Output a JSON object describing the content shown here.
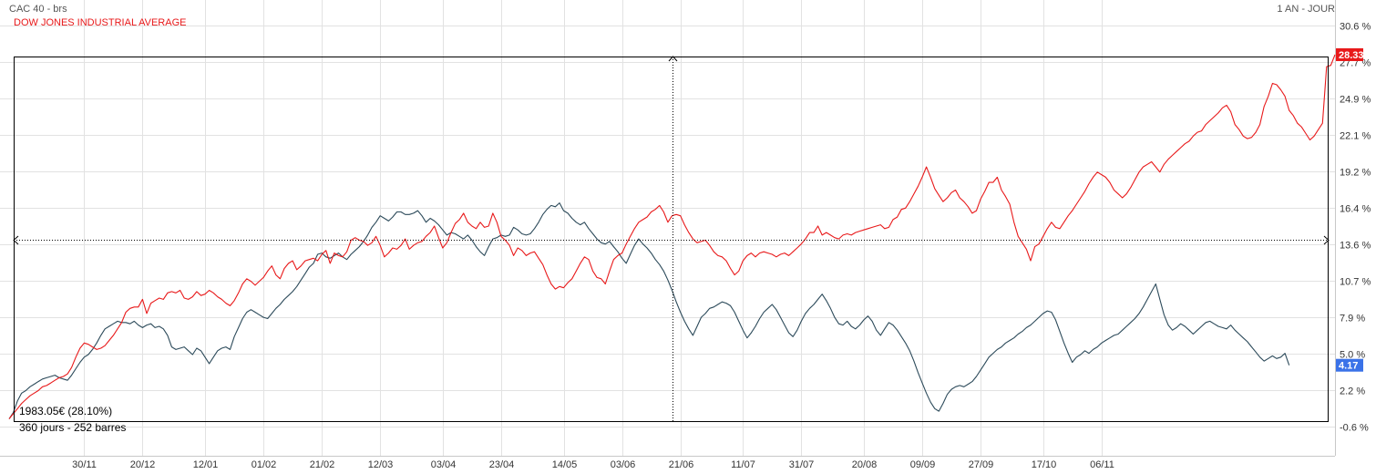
{
  "header": {
    "instrument": "CAC 40 - brs",
    "compare": "DOW JONES INDUSTRIAL AVERAGE",
    "period": "1 AN - JOUR"
  },
  "selection": {
    "price_change": "1983.05€ (28.10%)",
    "duration": "360 jours - 252 barres"
  },
  "colors": {
    "cac40": "#2c4a5a",
    "djia": "#e8191a",
    "last_cac_badge": "#3a72e8",
    "last_djia_badge": "#e8191a",
    "grid": "#e2e2e2"
  },
  "chart_data": {
    "type": "line",
    "y_unit": "%",
    "ylim": [
      -0.6,
      30.6
    ],
    "y_ticks": [
      "30.6 %",
      "27.7 %",
      "24.9 %",
      "22.1 %",
      "19.2 %",
      "16.4 %",
      "13.6 %",
      "10.7 %",
      "7.9 %",
      "5.0 %",
      "2.2 %",
      "-0.6 %"
    ],
    "x_ticks": [
      "30/11",
      "20/12",
      "12/01",
      "01/02",
      "21/02",
      "12/03",
      "03/04",
      "23/04",
      "14/05",
      "03/06",
      "21/06",
      "11/07",
      "31/07",
      "20/08",
      "09/09",
      "27/09",
      "17/10",
      "06/11"
    ],
    "x_tick_index": [
      18,
      32,
      47,
      61,
      75,
      89,
      104,
      118,
      133,
      147,
      161,
      176,
      190,
      205,
      219,
      233,
      248,
      262
    ],
    "grid": true,
    "last_values": {
      "djia": "28.33",
      "cac40": "4.17"
    },
    "series": [
      {
        "name": "DOW JONES INDUSTRIAL AVERAGE",
        "key": "djia",
        "values": [
          0.0,
          0.4,
          0.8,
          1.2,
          1.5,
          1.8,
          2.0,
          2.2,
          2.5,
          2.6,
          2.8,
          3.0,
          3.2,
          3.3,
          3.5,
          4.0,
          4.8,
          5.5,
          5.9,
          5.8,
          5.6,
          5.4,
          5.5,
          5.7,
          6.1,
          6.5,
          7.0,
          7.5,
          8.3,
          8.6,
          8.7,
          8.7,
          9.3,
          8.2,
          9.0,
          9.2,
          9.4,
          9.3,
          9.8,
          9.9,
          9.8,
          10.0,
          9.4,
          9.3,
          9.5,
          9.9,
          9.6,
          9.7,
          10.0,
          9.8,
          9.5,
          9.3,
          9.0,
          8.8,
          9.2,
          9.8,
          10.5,
          10.9,
          10.7,
          10.4,
          10.7,
          11.0,
          11.5,
          11.9,
          11.2,
          10.9,
          11.7,
          12.1,
          12.3,
          11.6,
          11.9,
          12.3,
          12.4,
          12.5,
          12.3,
          12.8,
          13.1,
          12.1,
          12.9,
          12.7,
          12.6,
          13.0,
          13.9,
          14.1,
          13.9,
          13.8,
          13.5,
          13.7,
          14.2,
          13.5,
          12.6,
          12.9,
          13.3,
          13.2,
          13.5,
          14.0,
          13.2,
          13.5,
          13.7,
          13.8,
          14.2,
          14.5,
          15.0,
          14.1,
          13.3,
          13.7,
          14.5,
          15.2,
          15.5,
          16.0,
          15.3,
          15.0,
          14.8,
          15.3,
          14.9,
          15.0,
          16.0,
          15.3,
          14.2,
          13.9,
          13.5,
          12.7,
          13.3,
          13.1,
          12.7,
          12.9,
          13.0,
          12.5,
          12.0,
          11.2,
          10.5,
          10.1,
          10.3,
          10.2,
          10.6,
          10.9,
          11.5,
          12.1,
          12.6,
          12.4,
          11.5,
          11.0,
          10.9,
          10.5,
          11.5,
          12.4,
          12.7,
          12.9,
          13.6,
          14.2,
          14.8,
          15.3,
          15.5,
          15.7,
          16.1,
          16.3,
          16.6,
          16.1,
          15.3,
          15.8,
          15.9,
          15.8,
          15.1,
          14.5,
          14.0,
          13.7,
          13.8,
          13.9,
          13.5,
          13.0,
          12.7,
          12.6,
          12.3,
          11.7,
          11.2,
          11.5,
          12.3,
          12.7,
          12.9,
          12.6,
          12.9,
          13.0,
          12.9,
          12.8,
          12.6,
          12.8,
          12.9,
          12.7,
          13.0,
          13.3,
          13.6,
          14.0,
          14.5,
          14.5,
          15.0,
          14.3,
          14.5,
          14.3,
          14.1,
          14.0,
          14.3,
          14.4,
          14.3,
          14.5,
          14.6,
          14.7,
          14.8,
          14.9,
          15.0,
          15.1,
          14.8,
          14.9,
          15.5,
          15.7,
          16.3,
          16.4,
          16.9,
          17.5,
          18.1,
          18.8,
          19.6,
          18.8,
          17.9,
          17.4,
          16.9,
          17.2,
          17.6,
          17.8,
          17.2,
          16.9,
          16.5,
          16.0,
          16.2,
          17.1,
          17.7,
          18.4,
          18.4,
          18.8,
          17.8,
          17.3,
          16.7,
          15.3,
          14.2,
          13.7,
          13.2,
          12.3,
          13.4,
          13.6,
          14.2,
          14.8,
          15.3,
          14.9,
          14.8,
          15.3,
          15.8,
          16.2,
          16.7,
          17.2,
          17.7,
          18.3,
          18.8,
          19.2,
          19.0,
          18.8,
          18.4,
          17.8,
          17.5,
          17.2,
          17.5,
          18.0,
          18.6,
          19.2,
          19.6,
          19.8,
          20.0,
          19.6,
          19.2,
          19.8,
          20.2,
          20.5,
          20.8,
          21.1,
          21.4,
          21.6,
          22.0,
          22.3,
          22.4,
          22.9,
          23.2,
          23.5,
          23.8,
          24.2,
          24.4,
          23.9,
          22.9,
          22.5,
          22.0,
          21.8,
          21.9,
          22.3,
          22.9,
          24.3,
          25.1,
          26.1,
          26.0,
          25.6,
          25.1,
          24.0,
          23.6,
          23.0,
          22.7,
          22.2,
          21.7,
          22.0,
          22.5,
          23.0,
          27.4,
          27.5,
          28.33
        ]
      },
      {
        "name": "CAC 40 - brs",
        "key": "cac40",
        "values": [
          0.0,
          0.5,
          1.4,
          2.0,
          2.2,
          2.5,
          2.7,
          2.9,
          3.1,
          3.2,
          3.3,
          3.4,
          3.2,
          3.1,
          3.0,
          3.4,
          3.9,
          4.4,
          4.8,
          5.0,
          5.4,
          5.9,
          6.5,
          7.0,
          7.2,
          7.4,
          7.6,
          7.5,
          7.5,
          7.4,
          7.6,
          7.3,
          7.1,
          7.3,
          7.4,
          7.1,
          7.2,
          7.0,
          6.5,
          5.6,
          5.4,
          5.5,
          5.6,
          5.3,
          5.0,
          5.5,
          5.3,
          4.8,
          4.3,
          4.8,
          5.3,
          5.5,
          5.6,
          5.4,
          6.4,
          7.1,
          7.8,
          8.3,
          8.5,
          8.3,
          8.1,
          7.9,
          7.8,
          8.2,
          8.6,
          8.9,
          9.3,
          9.6,
          9.9,
          10.3,
          10.8,
          11.3,
          11.8,
          12.1,
          12.8,
          12.9,
          12.6,
          12.5,
          12.7,
          12.9,
          12.6,
          12.4,
          12.8,
          13.1,
          13.4,
          13.8,
          14.3,
          14.9,
          15.3,
          15.8,
          15.6,
          15.4,
          15.7,
          16.1,
          16.1,
          15.9,
          15.9,
          16.0,
          16.2,
          15.8,
          15.3,
          15.6,
          15.4,
          15.1,
          14.7,
          14.3,
          14.5,
          14.4,
          14.2,
          14.0,
          14.3,
          13.9,
          13.4,
          13.0,
          12.7,
          13.4,
          14.0,
          14.1,
          14.3,
          14.2,
          14.3,
          14.9,
          14.7,
          14.4,
          14.3,
          14.4,
          14.8,
          15.3,
          15.9,
          16.3,
          16.6,
          16.5,
          16.8,
          16.2,
          16.0,
          15.6,
          15.3,
          15.1,
          15.3,
          14.8,
          14.4,
          14.0,
          13.7,
          13.6,
          13.8,
          13.4,
          13.0,
          12.5,
          12.1,
          12.8,
          13.5,
          14.0,
          13.6,
          13.3,
          12.9,
          12.4,
          12.0,
          11.5,
          10.8,
          10.0,
          9.1,
          8.3,
          7.6,
          7.0,
          6.5,
          7.2,
          7.9,
          8.2,
          8.6,
          8.7,
          8.9,
          9.1,
          9.0,
          8.8,
          8.3,
          7.6,
          6.9,
          6.3,
          6.7,
          7.2,
          7.8,
          8.3,
          8.6,
          8.9,
          8.5,
          7.9,
          7.3,
          6.7,
          6.4,
          6.9,
          7.6,
          8.2,
          8.6,
          8.9,
          9.3,
          9.7,
          9.2,
          8.6,
          7.9,
          7.4,
          7.3,
          7.6,
          7.2,
          7.0,
          7.3,
          7.7,
          8.0,
          7.6,
          6.9,
          6.5,
          7.0,
          7.5,
          7.3,
          6.9,
          6.4,
          5.9,
          5.3,
          4.5,
          3.6,
          2.8,
          2.0,
          1.3,
          0.8,
          0.6,
          1.2,
          1.9,
          2.3,
          2.5,
          2.6,
          2.5,
          2.7,
          2.9,
          3.3,
          3.8,
          4.3,
          4.8,
          5.1,
          5.4,
          5.6,
          5.9,
          6.1,
          6.3,
          6.6,
          6.8,
          7.1,
          7.3,
          7.6,
          7.9,
          8.2,
          8.4,
          8.3,
          7.7,
          6.8,
          5.9,
          5.1,
          4.4,
          4.8,
          5.0,
          5.3,
          5.1,
          5.4,
          5.6,
          5.9,
          6.1,
          6.3,
          6.5,
          6.6,
          6.9,
          7.2,
          7.5,
          7.8,
          8.2,
          8.7,
          9.3,
          9.9,
          10.5,
          9.3,
          8.1,
          7.3,
          6.9,
          7.1,
          7.4,
          7.2,
          6.9,
          6.6,
          6.9,
          7.2,
          7.5,
          7.6,
          7.4,
          7.2,
          7.1,
          7.0,
          7.3,
          6.9,
          6.6,
          6.3,
          6.0,
          5.6,
          5.2,
          4.8,
          4.5,
          4.7,
          4.9,
          4.7,
          4.8,
          5.1,
          4.17
        ]
      }
    ]
  }
}
